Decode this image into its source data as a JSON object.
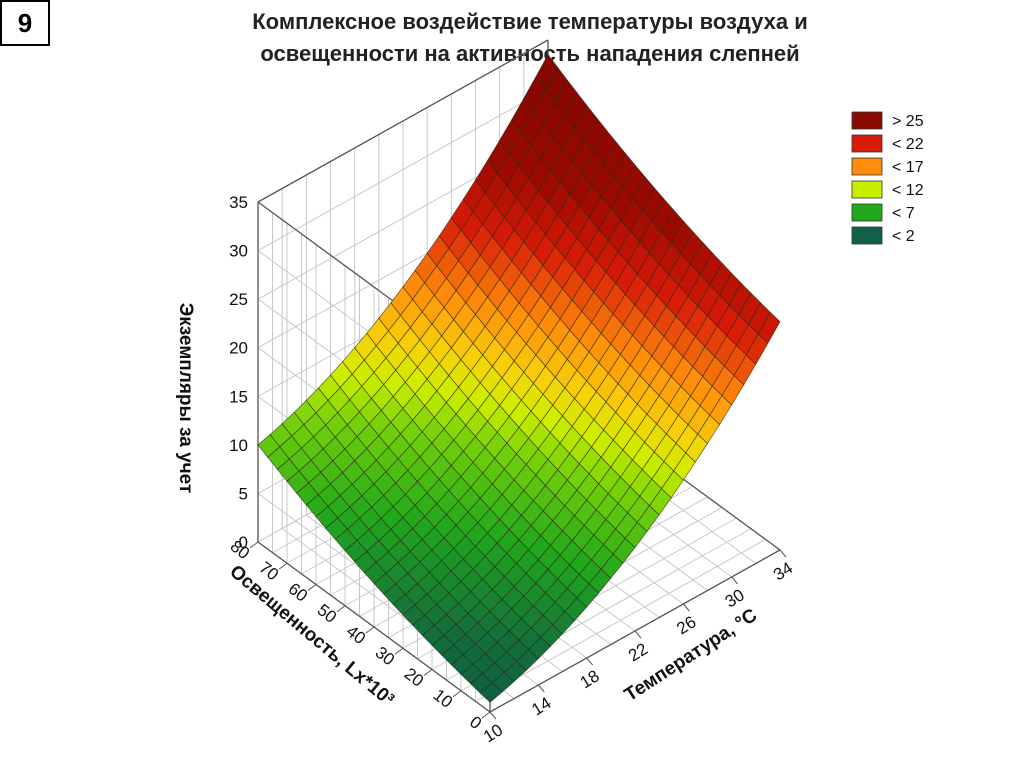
{
  "slide": {
    "number": "9"
  },
  "title_lines": [
    "Комплексное воздействие температуры воздуха и",
    "освещенности на активность нападения слепней"
  ],
  "chart_data": {
    "type": "surface3d",
    "title": "Комплексное воздействие температуры воздуха и освещенности на активность нападения слепней",
    "x_label": "Температура, °C",
    "y_label": "Освещенность, Lx*10³",
    "z_label": "Экземпляры за учет",
    "x_ticks": [
      "10",
      "14",
      "18",
      "22",
      "26",
      "30",
      "34"
    ],
    "y_ticks": [
      "0",
      "10",
      "20",
      "30",
      "40",
      "50",
      "60",
      "70",
      "80"
    ],
    "z_ticks": [
      "0",
      "5",
      "10",
      "15",
      "20",
      "25",
      "30",
      "35"
    ],
    "x_range": [
      10,
      34
    ],
    "y_range": [
      0,
      80
    ],
    "z_range": [
      0,
      35
    ],
    "corner_values": [
      {
        "temperature": 10,
        "illumination": 80,
        "value": 10
      },
      {
        "temperature": 10,
        "illumination": 0,
        "value": 1
      },
      {
        "temperature": 34,
        "illumination": 80,
        "value": 33.5
      },
      {
        "temperature": 34,
        "illumination": 0,
        "value": 23.5
      }
    ],
    "legend": [
      {
        "label": "> 25",
        "color": "#8b0a00"
      },
      {
        "label": "< 22",
        "color": "#d81a08"
      },
      {
        "label": "< 17",
        "color": "#ff8c0a"
      },
      {
        "label": "< 12",
        "color": "#c6f000"
      },
      {
        "label": "< 7",
        "color": "#22a81c"
      },
      {
        "label": "< 2",
        "color": "#11604a"
      }
    ],
    "grid": true,
    "legend_position": "top-right"
  }
}
